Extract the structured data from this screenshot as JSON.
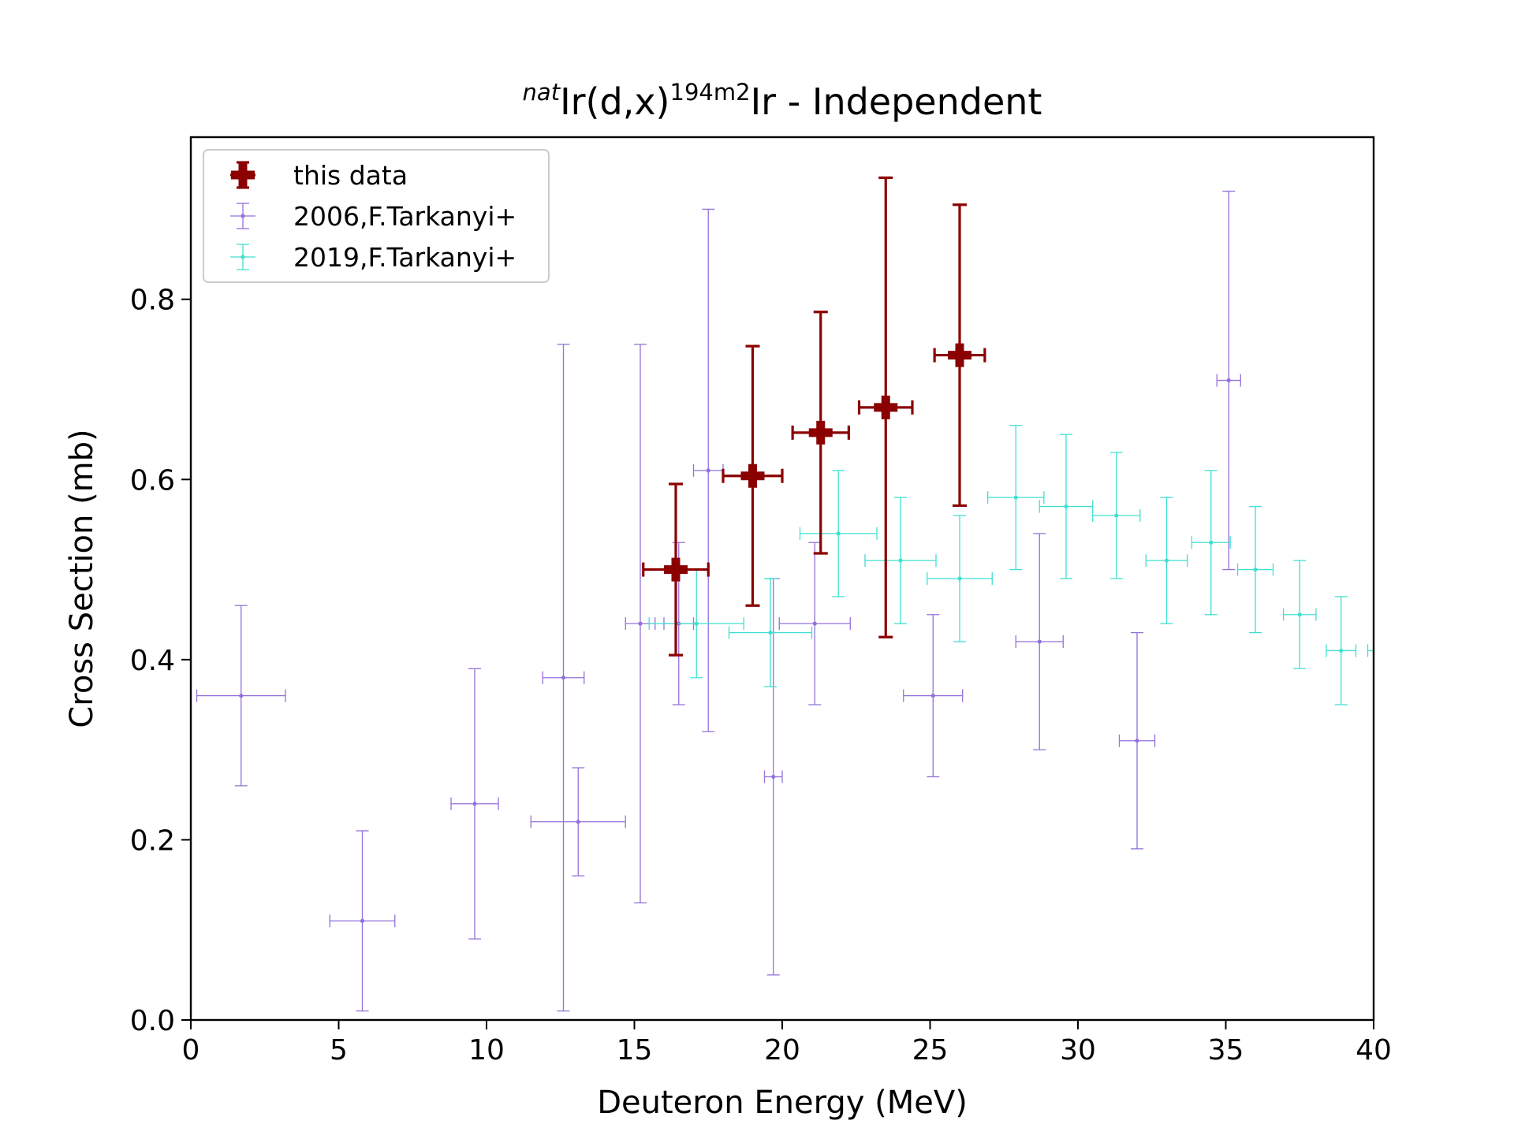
{
  "chart_data": {
    "type": "scatter",
    "title": {
      "prefix": "nat",
      "part1": "Ir(d,x)",
      "sup2": "194m2",
      "part2": "Ir - Independent"
    },
    "xlabel": "Deuteron Energy (MeV)",
    "ylabel": "Cross Section (mb)",
    "xlim": [
      0,
      40
    ],
    "ylim": [
      0,
      0.98
    ],
    "xticks": [
      "0",
      "5",
      "10",
      "15",
      "20",
      "25",
      "30",
      "35",
      "40"
    ],
    "yticks": [
      "0.0",
      "0.2",
      "0.4",
      "0.6",
      "0.8"
    ],
    "grid": false,
    "legend_position": "upper-left",
    "series": [
      {
        "name": "this data",
        "color": "#8b0000",
        "marker": "plus-filled",
        "points": [
          {
            "x": 16.4,
            "y": 0.5,
            "xerr": 1.1,
            "yerr": 0.095
          },
          {
            "x": 19.0,
            "y": 0.604,
            "xerr": 1.0,
            "yerr": 0.144
          },
          {
            "x": 21.3,
            "y": 0.652,
            "xerr": 0.95,
            "yerr": 0.134
          },
          {
            "x": 23.5,
            "y": 0.68,
            "xerr": 0.9,
            "yerr": 0.255
          },
          {
            "x": 26.0,
            "y": 0.738,
            "xerr": 0.85,
            "yerr": 0.167
          }
        ]
      },
      {
        "name": "2006,F.Tarkanyi+",
        "color": "#9370db",
        "marker": "dot",
        "points": [
          {
            "x": 1.7,
            "y": 0.36,
            "xerr": 1.5,
            "yerr": 0.1
          },
          {
            "x": 5.8,
            "y": 0.11,
            "xerr": 1.1,
            "yerr": 0.1
          },
          {
            "x": 9.6,
            "y": 0.24,
            "xerr": 0.8,
            "yerr": 0.15
          },
          {
            "x": 12.6,
            "y": 0.38,
            "xerr": 0.7,
            "yerr": 0.37
          },
          {
            "x": 13.1,
            "y": 0.22,
            "xerr": 1.6,
            "yerr": 0.06
          },
          {
            "x": 15.2,
            "y": 0.44,
            "xerr": 0.5,
            "yerr": 0.31
          },
          {
            "x": 16.5,
            "y": 0.44,
            "xerr": 0.5,
            "yerr": 0.09
          },
          {
            "x": 17.5,
            "y": 0.61,
            "xerr": 0.5,
            "yerr": 0.29
          },
          {
            "x": 19.7,
            "y": 0.27,
            "xerr": 0.3,
            "yerr": 0.22
          },
          {
            "x": 21.1,
            "y": 0.44,
            "xerr": 1.2,
            "yerr": 0.09
          },
          {
            "x": 25.1,
            "y": 0.36,
            "xerr": 1.0,
            "yerr": 0.09
          },
          {
            "x": 28.7,
            "y": 0.42,
            "xerr": 0.8,
            "yerr": 0.12
          },
          {
            "x": 32.0,
            "y": 0.31,
            "xerr": 0.6,
            "yerr": 0.12
          },
          {
            "x": 35.1,
            "y": 0.71,
            "xerr": 0.4,
            "yerr": 0.21
          }
        ]
      },
      {
        "name": "2019,F.Tarkanyi+",
        "color": "#40e0d0",
        "marker": "dot",
        "points": [
          {
            "x": 17.1,
            "y": 0.44,
            "xerr": 1.6,
            "yerr": 0.06
          },
          {
            "x": 19.6,
            "y": 0.43,
            "xerr": 1.4,
            "yerr": 0.06
          },
          {
            "x": 21.9,
            "y": 0.54,
            "xerr": 1.3,
            "yerr": 0.07
          },
          {
            "x": 24.0,
            "y": 0.51,
            "xerr": 1.2,
            "yerr": 0.07
          },
          {
            "x": 26.0,
            "y": 0.49,
            "xerr": 1.1,
            "yerr": 0.07
          },
          {
            "x": 27.9,
            "y": 0.58,
            "xerr": 0.95,
            "yerr": 0.08
          },
          {
            "x": 29.6,
            "y": 0.57,
            "xerr": 0.9,
            "yerr": 0.08
          },
          {
            "x": 31.3,
            "y": 0.56,
            "xerr": 0.8,
            "yerr": 0.07
          },
          {
            "x": 33.0,
            "y": 0.51,
            "xerr": 0.7,
            "yerr": 0.07
          },
          {
            "x": 34.5,
            "y": 0.53,
            "xerr": 0.65,
            "yerr": 0.08
          },
          {
            "x": 36.0,
            "y": 0.5,
            "xerr": 0.6,
            "yerr": 0.07
          },
          {
            "x": 37.5,
            "y": 0.45,
            "xerr": 0.55,
            "yerr": 0.06
          },
          {
            "x": 38.9,
            "y": 0.41,
            "xerr": 0.5,
            "yerr": 0.06
          },
          {
            "x": 40.3,
            "y": 0.41,
            "xerr": 0.5,
            "yerr": 0.06
          }
        ]
      }
    ]
  }
}
